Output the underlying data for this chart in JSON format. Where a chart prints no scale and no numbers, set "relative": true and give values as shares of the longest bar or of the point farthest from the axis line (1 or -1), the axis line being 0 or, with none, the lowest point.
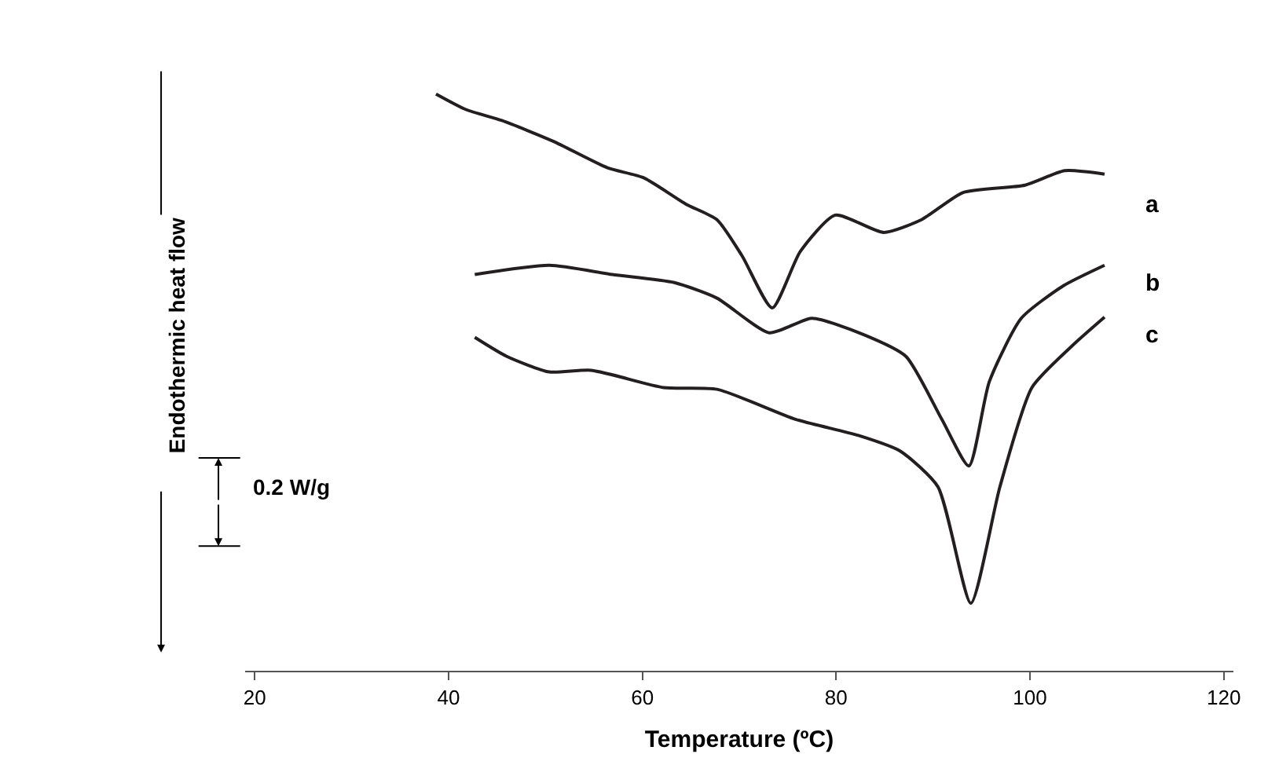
{
  "chart_data": {
    "type": "line",
    "relative": true,
    "xlabel": "Temperature (ºC)",
    "ylabel": "Endothermic heat flow",
    "xlim": [
      19,
      121
    ],
    "xticks": [
      20,
      40,
      60,
      80,
      100,
      120
    ],
    "legend": false,
    "marker": "none",
    "line_style": "solid",
    "annotations": [
      "0.2 W/g"
    ],
    "series": [
      {
        "name": "a",
        "color": "#231f20",
        "x": [
          38.7,
          41.8,
          45.5,
          50.8,
          56.4,
          60.1,
          64.5,
          67.7,
          70.3,
          73.4,
          76.3,
          79.9,
          84.9,
          88.8,
          93.1,
          99.5,
          103.6,
          107.7
        ],
        "values": [
          1.0,
          0.973,
          0.954,
          0.918,
          0.872,
          0.855,
          0.809,
          0.782,
          0.719,
          0.629,
          0.727,
          0.79,
          0.76,
          0.782,
          0.829,
          0.842,
          0.867,
          0.861
        ]
      },
      {
        "name": "b",
        "color": "#231f20",
        "x": [
          42.7,
          50.4,
          56.9,
          63.3,
          67.7,
          73.1,
          77.5,
          82.8,
          87.2,
          90.9,
          93.7,
          95.8,
          99.1,
          103.4,
          107.7
        ],
        "values": [
          0.687,
          0.703,
          0.687,
          0.673,
          0.646,
          0.586,
          0.611,
          0.583,
          0.545,
          0.436,
          0.355,
          0.501,
          0.611,
          0.667,
          0.703
        ]
      },
      {
        "name": "c",
        "color": "#231f20",
        "x": [
          42.7,
          46.0,
          50.4,
          54.7,
          62.2,
          67.7,
          75.8,
          82.3,
          86.6,
          90.5,
          93.9,
          96.9,
          100.2,
          104.4,
          107.7
        ],
        "values": [
          0.578,
          0.545,
          0.518,
          0.521,
          0.491,
          0.488,
          0.436,
          0.408,
          0.381,
          0.319,
          0.117,
          0.319,
          0.491,
          0.564,
          0.613
        ]
      }
    ]
  }
}
